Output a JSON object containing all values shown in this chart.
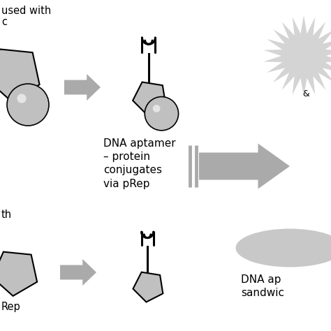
{
  "bg_color": "#ffffff",
  "arrow_color": "#aaaaaa",
  "shape_fill": "#c0c0c0",
  "shape_outline": "#000000",
  "text_color": "#000000",
  "label_middle": "DNA aptamer\n– protein\nconjugates\nvia pRep",
  "label_bottom_right": "DNA ap\nsandwic",
  "label_top_left_line1": "used with",
  "label_top_left_line2": "c",
  "label_mid_left": "th",
  "label_bot_left": "Rep"
}
